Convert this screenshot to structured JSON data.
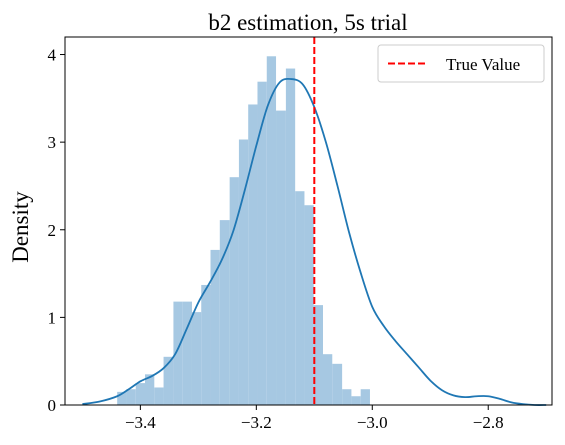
{
  "chart_data": {
    "type": "histogram",
    "title": "b2 estimation, 5s trial",
    "xlabel": "",
    "ylabel": "Density",
    "xlim": [
      -3.53,
      -2.69
    ],
    "ylim": [
      0,
      4.2
    ],
    "x_ticks": [
      -3.4,
      -3.2,
      -3.0,
      -2.8
    ],
    "x_tick_labels": [
      "−3.4",
      "−3.2",
      "−3.0",
      "−2.8"
    ],
    "y_ticks": [
      0,
      1,
      2,
      3,
      4
    ],
    "y_tick_labels": [
      "0",
      "1",
      "2",
      "3",
      "4"
    ],
    "grid": false,
    "bins": [
      {
        "x0": -3.44,
        "x1": -3.424,
        "density": 0.15
      },
      {
        "x0": -3.424,
        "x1": -3.408,
        "density": 0.18
      },
      {
        "x0": -3.408,
        "x1": -3.392,
        "density": 0.25
      },
      {
        "x0": -3.392,
        "x1": -3.376,
        "density": 0.35
      },
      {
        "x0": -3.376,
        "x1": -3.36,
        "density": 0.2
      },
      {
        "x0": -3.36,
        "x1": -3.343,
        "density": 0.55
      },
      {
        "x0": -3.343,
        "x1": -3.327,
        "density": 1.18
      },
      {
        "x0": -3.327,
        "x1": -3.311,
        "density": 1.18
      },
      {
        "x0": -3.311,
        "x1": -3.295,
        "density": 1.06
      },
      {
        "x0": -3.295,
        "x1": -3.279,
        "density": 1.37
      },
      {
        "x0": -3.279,
        "x1": -3.263,
        "density": 1.77
      },
      {
        "x0": -3.263,
        "x1": -3.246,
        "density": 2.11
      },
      {
        "x0": -3.246,
        "x1": -3.23,
        "density": 2.6
      },
      {
        "x0": -3.23,
        "x1": -3.214,
        "density": 3.03
      },
      {
        "x0": -3.214,
        "x1": -3.198,
        "density": 3.43
      },
      {
        "x0": -3.198,
        "x1": -3.182,
        "density": 3.69
      },
      {
        "x0": -3.182,
        "x1": -3.166,
        "density": 3.98
      },
      {
        "x0": -3.166,
        "x1": -3.149,
        "density": 3.36
      },
      {
        "x0": -3.149,
        "x1": -3.133,
        "density": 3.84
      },
      {
        "x0": -3.133,
        "x1": -3.117,
        "density": 2.44
      },
      {
        "x0": -3.117,
        "x1": -3.101,
        "density": 2.28
      },
      {
        "x0": -3.101,
        "x1": -3.085,
        "density": 1.14
      },
      {
        "x0": -3.085,
        "x1": -3.069,
        "density": 0.58
      },
      {
        "x0": -3.069,
        "x1": -3.052,
        "density": 0.47
      },
      {
        "x0": -3.052,
        "x1": -3.036,
        "density": 0.18
      },
      {
        "x0": -3.036,
        "x1": -3.02,
        "density": 0.1
      },
      {
        "x0": -3.02,
        "x1": -3.004,
        "density": 0.18
      }
    ],
    "kde": {
      "x": [
        -3.5,
        -3.47,
        -3.44,
        -3.42,
        -3.4,
        -3.38,
        -3.36,
        -3.34,
        -3.32,
        -3.3,
        -3.28,
        -3.26,
        -3.24,
        -3.22,
        -3.2,
        -3.18,
        -3.16,
        -3.14,
        -3.12,
        -3.1,
        -3.08,
        -3.06,
        -3.04,
        -3.02,
        -3.0,
        -2.98,
        -2.96,
        -2.94,
        -2.92,
        -2.9,
        -2.88,
        -2.86,
        -2.84,
        -2.82,
        -2.8,
        -2.78,
        -2.76,
        -2.74,
        -2.72,
        -2.7
      ],
      "y": [
        0.01,
        0.04,
        0.1,
        0.18,
        0.27,
        0.33,
        0.42,
        0.58,
        0.87,
        1.17,
        1.4,
        1.65,
        1.98,
        2.45,
        2.96,
        3.42,
        3.68,
        3.72,
        3.66,
        3.4,
        3.0,
        2.5,
        1.97,
        1.51,
        1.12,
        0.9,
        0.73,
        0.58,
        0.43,
        0.28,
        0.17,
        0.11,
        0.09,
        0.1,
        0.1,
        0.07,
        0.03,
        0.01,
        0.0,
        0.0
      ]
    },
    "reference_line": {
      "x": -3.1,
      "label": "True Value",
      "style": "dashed"
    },
    "legend": {
      "entries": [
        "True Value"
      ],
      "placement": "top-right"
    },
    "colors": {
      "bars": "#a6c8e2",
      "kde": "#1f77b4",
      "reference": "#ff0000",
      "axes": "#000000",
      "legend_border": "#cccccc"
    }
  }
}
